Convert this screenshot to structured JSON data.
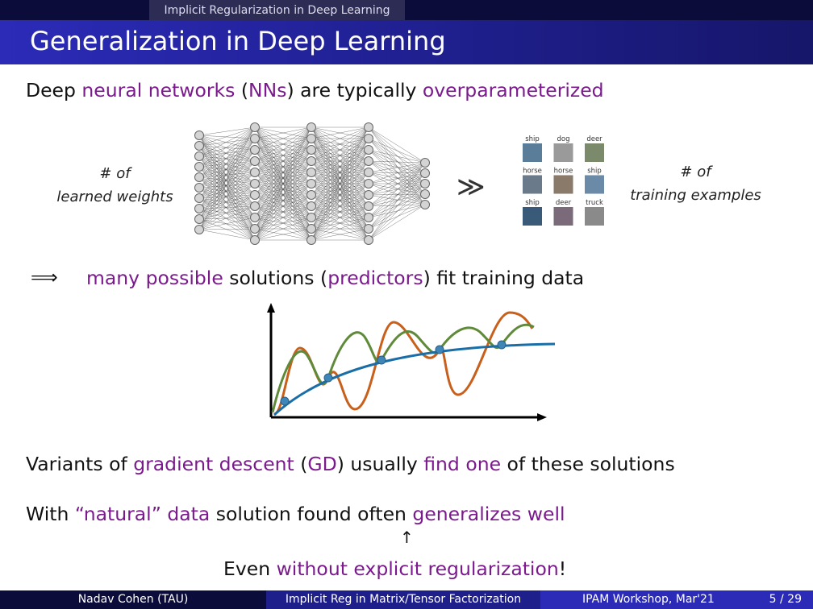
{
  "header": {
    "section": "Implicit Regularization in Deep Learning",
    "title": "Generalization in Deep Learning"
  },
  "statement": [
    {
      "text": "Deep "
    },
    {
      "text": "neural networks",
      "highlight": true
    },
    {
      "text": " ("
    },
    {
      "text": "NNs",
      "highlight": true
    },
    {
      "text": ") are typically "
    },
    {
      "text": "overparameterized",
      "highlight": true
    }
  ],
  "figure": {
    "left_label": [
      "# of",
      "learned weights"
    ],
    "relation": "≫",
    "right_label": [
      "# of",
      "training examples"
    ],
    "image_labels": [
      "ship",
      "dog",
      "deer",
      "horse",
      "horse",
      "ship",
      "ship",
      "deer",
      "truck"
    ]
  },
  "implication": {
    "arrow": "⟹",
    "segments": [
      {
        "text": "many possible",
        "highlight": true
      },
      {
        "text": " solutions ("
      },
      {
        "text": "predictors",
        "highlight": true
      },
      {
        "text": ") fit training data"
      }
    ]
  },
  "variants": [
    {
      "text": "Variants of "
    },
    {
      "text": "gradient descent",
      "highlight": true
    },
    {
      "text": " ("
    },
    {
      "text": "GD",
      "highlight": true
    },
    {
      "text": ") usually "
    },
    {
      "text": "find one",
      "highlight": true
    },
    {
      "text": " of these solutions"
    }
  ],
  "natural": [
    {
      "text": "With "
    },
    {
      "text": "“natural” data",
      "highlight": true
    },
    {
      "text": " solution found often "
    },
    {
      "text": "generalizes well",
      "highlight": true
    }
  ],
  "pointer": "↑",
  "note": [
    {
      "text": "Even "
    },
    {
      "text": "without explicit regularization",
      "highlight": true
    },
    {
      "text": "!"
    }
  ],
  "footer": {
    "author": "Nadav Cohen (TAU)",
    "talk": "Implicit Reg in Matrix/Tensor Factorization",
    "venue": "IPAM Workshop, Mar'21",
    "page": "5 / 29"
  }
}
